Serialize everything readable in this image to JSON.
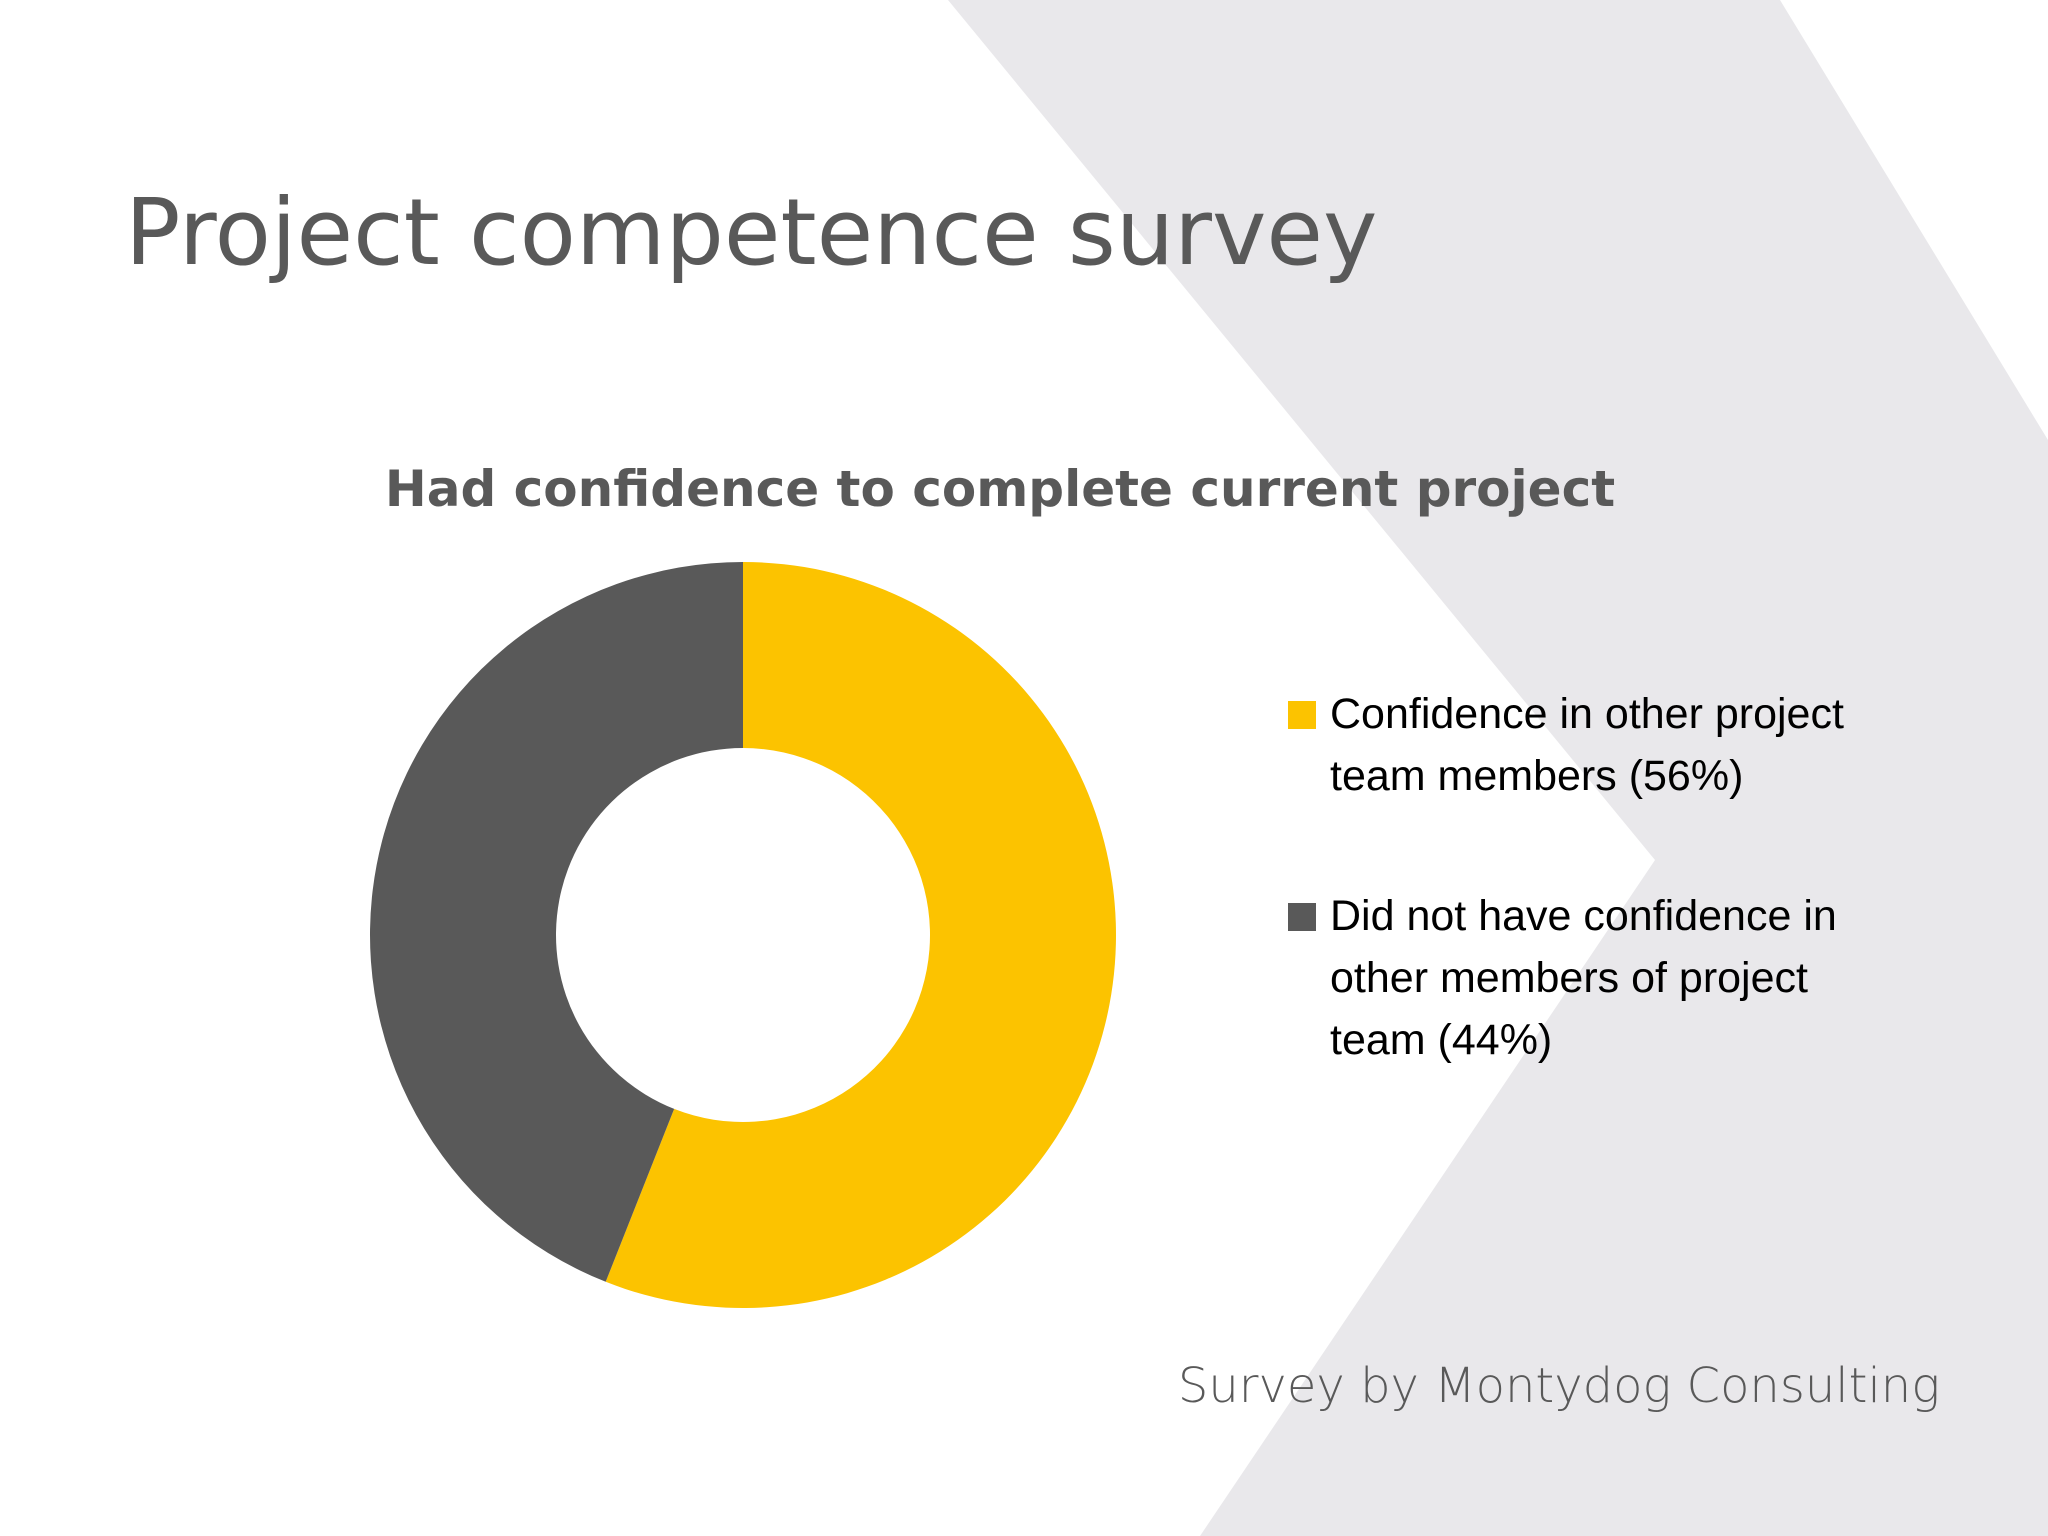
{
  "slide": {
    "title": "Project competence survey",
    "source": "Survey by Montydog Consulting"
  },
  "colors": {
    "background": "#ffffff",
    "background_shape": "#e9e8eb",
    "title_text": "#595959",
    "series_confident": "#fcc300",
    "series_not_confident": "#595959"
  },
  "chart_data": {
    "type": "pie",
    "variant": "donut",
    "title": "Had confidence to complete current project",
    "legend_position": "right",
    "categories": [
      "Confidence in other project team members (56%)",
      "Did not have confidence in other members of project team (44%)"
    ],
    "values": [
      56,
      44
    ],
    "slice_colors": [
      "#fcc300",
      "#595959"
    ]
  }
}
